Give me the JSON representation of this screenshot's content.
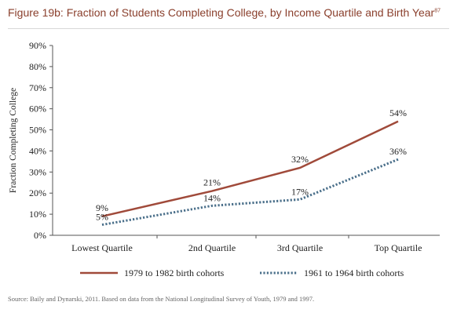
{
  "page": {
    "title": "Figure 19b: Fraction of Students Completing College, by Income Quartile and Birth Year",
    "title_footnote": "87",
    "source": "Source: Baily and Dynarski, 2011. Based on data from the National Longitudinal Survey of Youth, 1979 and 1997."
  },
  "chart_data": {
    "type": "line",
    "ylabel": "Fraction Completing College",
    "xlabel": "",
    "categories": [
      "Lowest Quartile",
      "2nd Quartile",
      "3rd Quartile",
      "Top Quartile"
    ],
    "ylim": [
      0,
      90
    ],
    "yticks": [
      0,
      10,
      20,
      30,
      40,
      50,
      60,
      70,
      80,
      90
    ],
    "ytick_labels": [
      "0%",
      "10%",
      "20%",
      "30%",
      "40%",
      "50%",
      "60%",
      "70%",
      "80%",
      "90%"
    ],
    "grid": false,
    "legend_position": "bottom",
    "series": [
      {
        "name": "1979 to 1982 birth cohorts",
        "values": [
          9,
          21,
          32,
          54
        ],
        "labels": [
          "9%",
          "21%",
          "32%",
          "54%"
        ],
        "color": "#a04a3a",
        "style": "solid"
      },
      {
        "name": "1961 to 1964 birth cohorts",
        "values": [
          5,
          14,
          17,
          36
        ],
        "labels": [
          "5%",
          "14%",
          "17%",
          "36%"
        ],
        "color": "#4a6f8a",
        "style": "dotted"
      }
    ]
  }
}
